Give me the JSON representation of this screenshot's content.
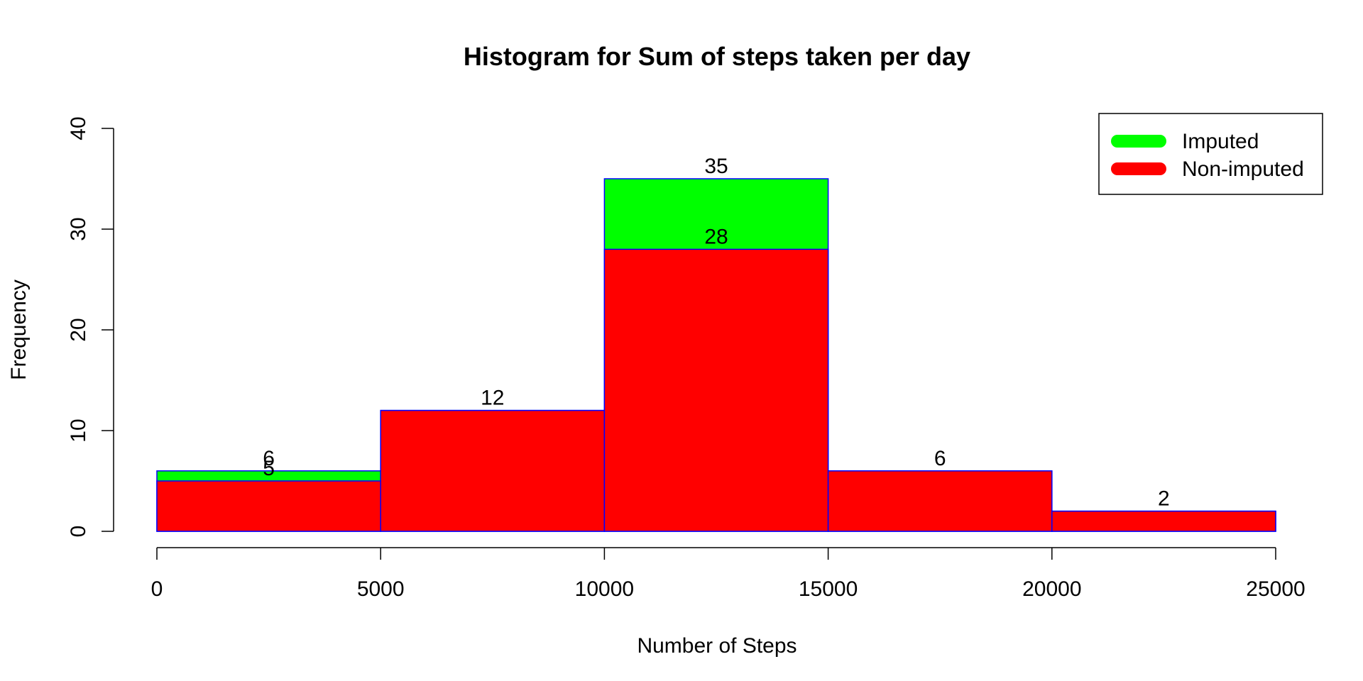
{
  "chart_data": {
    "type": "bar",
    "title": "Histogram for Sum of steps taken per day",
    "xlabel": "Number of Steps",
    "ylabel": "Frequency",
    "bins": [
      [
        0,
        5000
      ],
      [
        5000,
        10000
      ],
      [
        10000,
        15000
      ],
      [
        15000,
        20000
      ],
      [
        20000,
        25000
      ]
    ],
    "xlim": [
      0,
      25000
    ],
    "ylim": [
      0,
      40
    ],
    "xticks": [
      0,
      5000,
      10000,
      15000,
      20000,
      25000
    ],
    "yticks": [
      0,
      10,
      20,
      30,
      40
    ],
    "grid": false,
    "legend_position": "top-right",
    "bar_border_color": "#0000FF",
    "series": [
      {
        "name": "Imputed",
        "color": "#00FF00",
        "values": [
          6,
          12,
          35,
          6,
          2
        ]
      },
      {
        "name": "Non-imputed",
        "color": "#FF0000",
        "values": [
          5,
          12,
          28,
          6,
          2
        ]
      }
    ],
    "data_labels": [
      {
        "bin": 0,
        "text": "6",
        "value": 6
      },
      {
        "bin": 0,
        "text": "5",
        "value": 5
      },
      {
        "bin": 1,
        "text": "12",
        "value": 12
      },
      {
        "bin": 2,
        "text": "35",
        "value": 35
      },
      {
        "bin": 2,
        "text": "28",
        "value": 28
      },
      {
        "bin": 3,
        "text": "6",
        "value": 6
      },
      {
        "bin": 4,
        "text": "2",
        "value": 2
      }
    ]
  }
}
